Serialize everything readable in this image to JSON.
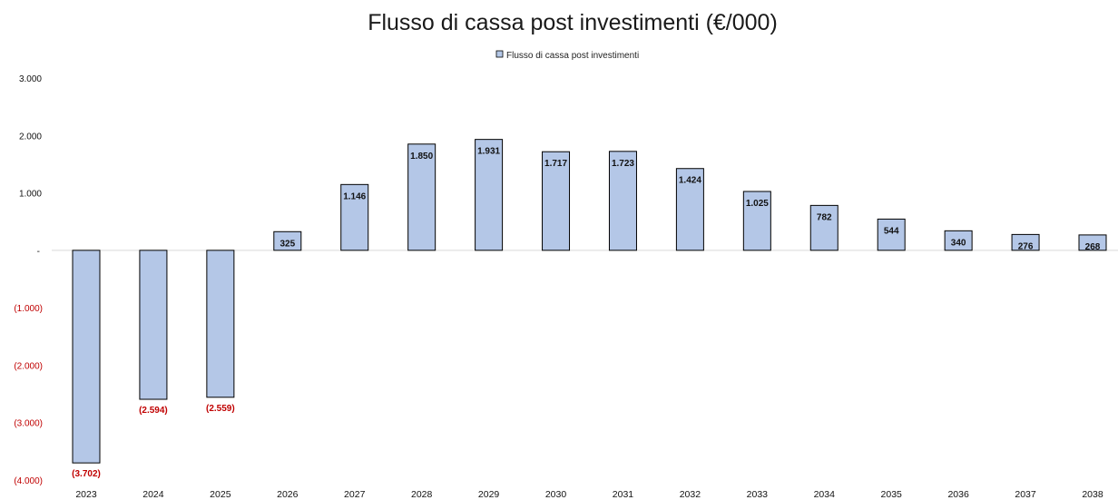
{
  "chart_data": {
    "type": "bar",
    "title": "Flusso di cassa post investimenti (€/000)",
    "legend": {
      "entry": "Flusso di cassa post investimenti",
      "position": "top"
    },
    "categories": [
      "2023",
      "2024",
      "2025",
      "2026",
      "2027",
      "2028",
      "2029",
      "2030",
      "2031",
      "2032",
      "2033",
      "2034",
      "2035",
      "2036",
      "2037",
      "2038"
    ],
    "series": [
      {
        "name": "Flusso di cassa post investimenti",
        "values": [
          -3702,
          -2594,
          -2559,
          325,
          1146,
          1850,
          1931,
          1717,
          1723,
          1424,
          1025,
          782,
          544,
          340,
          276,
          268
        ],
        "data_labels": [
          "(3.702)",
          "(2.594)",
          "(2.559)",
          "325",
          "1.146",
          "1.850",
          "1.931",
          "1.717",
          "1.723",
          "1.424",
          "1.025",
          "782",
          "544",
          "340",
          "276",
          "268"
        ]
      }
    ],
    "ylim": [
      -4000,
      3000
    ],
    "yticks": [
      {
        "value": 3000,
        "label": "3.000"
      },
      {
        "value": 2000,
        "label": "2.000"
      },
      {
        "value": 1000,
        "label": "1.000"
      },
      {
        "value": 0,
        "label": "-"
      },
      {
        "value": -1000,
        "label": "(1.000)"
      },
      {
        "value": -2000,
        "label": "(2.000)"
      },
      {
        "value": -3000,
        "label": "(3.000)"
      },
      {
        "value": -4000,
        "label": "(4.000)"
      }
    ],
    "grid": false,
    "colors": {
      "bar_fill": "#b4c7e7",
      "bar_stroke": "#000000",
      "negative_text": "#c00000",
      "text": "#111111",
      "zero_line": "#d9d9d9"
    }
  }
}
